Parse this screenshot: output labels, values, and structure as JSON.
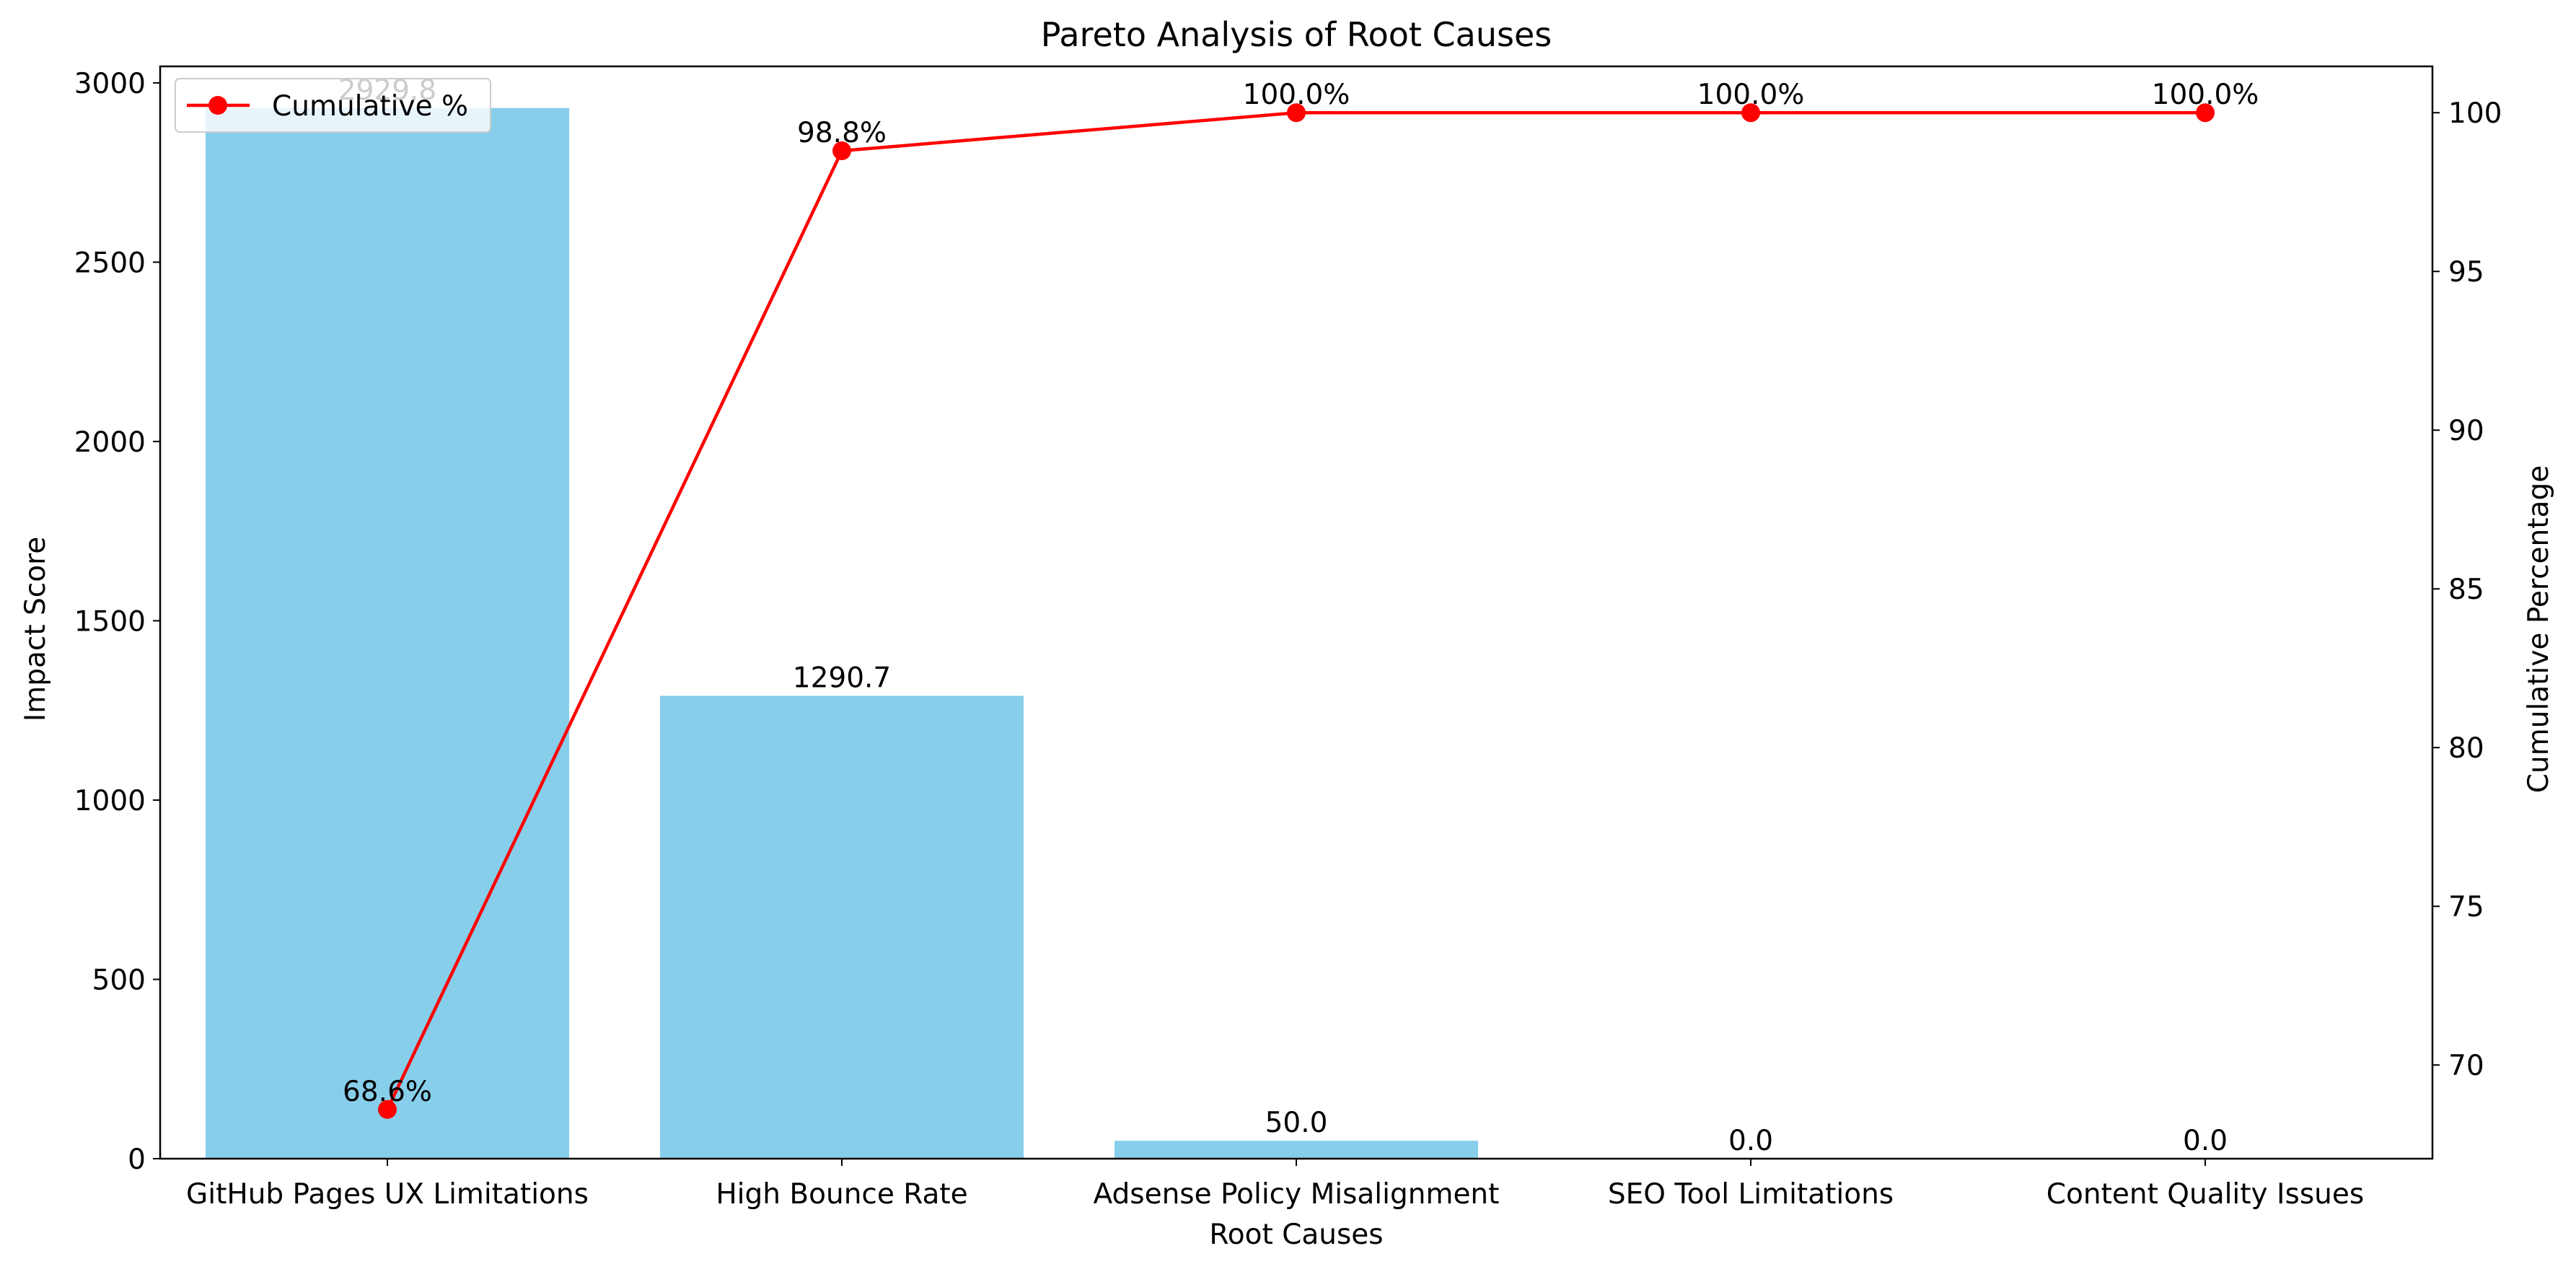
{
  "chart_data": {
    "type": "bar",
    "title": "Pareto Analysis of Root Causes",
    "xlabel": "Root Causes",
    "ylabel": "Impact Score",
    "y2label": "Cumulative Percentage",
    "categories": [
      "GitHub Pages UX Limitations",
      "High Bounce Rate",
      "Adsense Policy Misalignment",
      "SEO Tool Limitations",
      "Content Quality Issues"
    ],
    "series": [
      {
        "type": "bar",
        "values": [
          2929.8,
          1290.7,
          50.0,
          0.0,
          0.0
        ],
        "labels": [
          "2929.8",
          "1290.7",
          "50.0",
          "0.0",
          "0.0"
        ],
        "color": "#87ceeb"
      },
      {
        "name": "Cumulative %",
        "type": "line",
        "axis": "right",
        "values": [
          68.6,
          98.8,
          100.0,
          100.0,
          100.0
        ],
        "labels": [
          "68.6%",
          "98.8%",
          "100.0%",
          "100.0%",
          "100.0%"
        ],
        "color": "#ff0000"
      }
    ],
    "ylim": [
      0,
      3046
    ],
    "y2lim": [
      67.05,
      101.46
    ],
    "yticks": [
      0,
      500,
      1000,
      1500,
      2000,
      2500,
      3000
    ],
    "y2ticks": [
      70,
      75,
      80,
      85,
      90,
      95,
      100
    ],
    "grid": false,
    "legend": "upper left"
  }
}
